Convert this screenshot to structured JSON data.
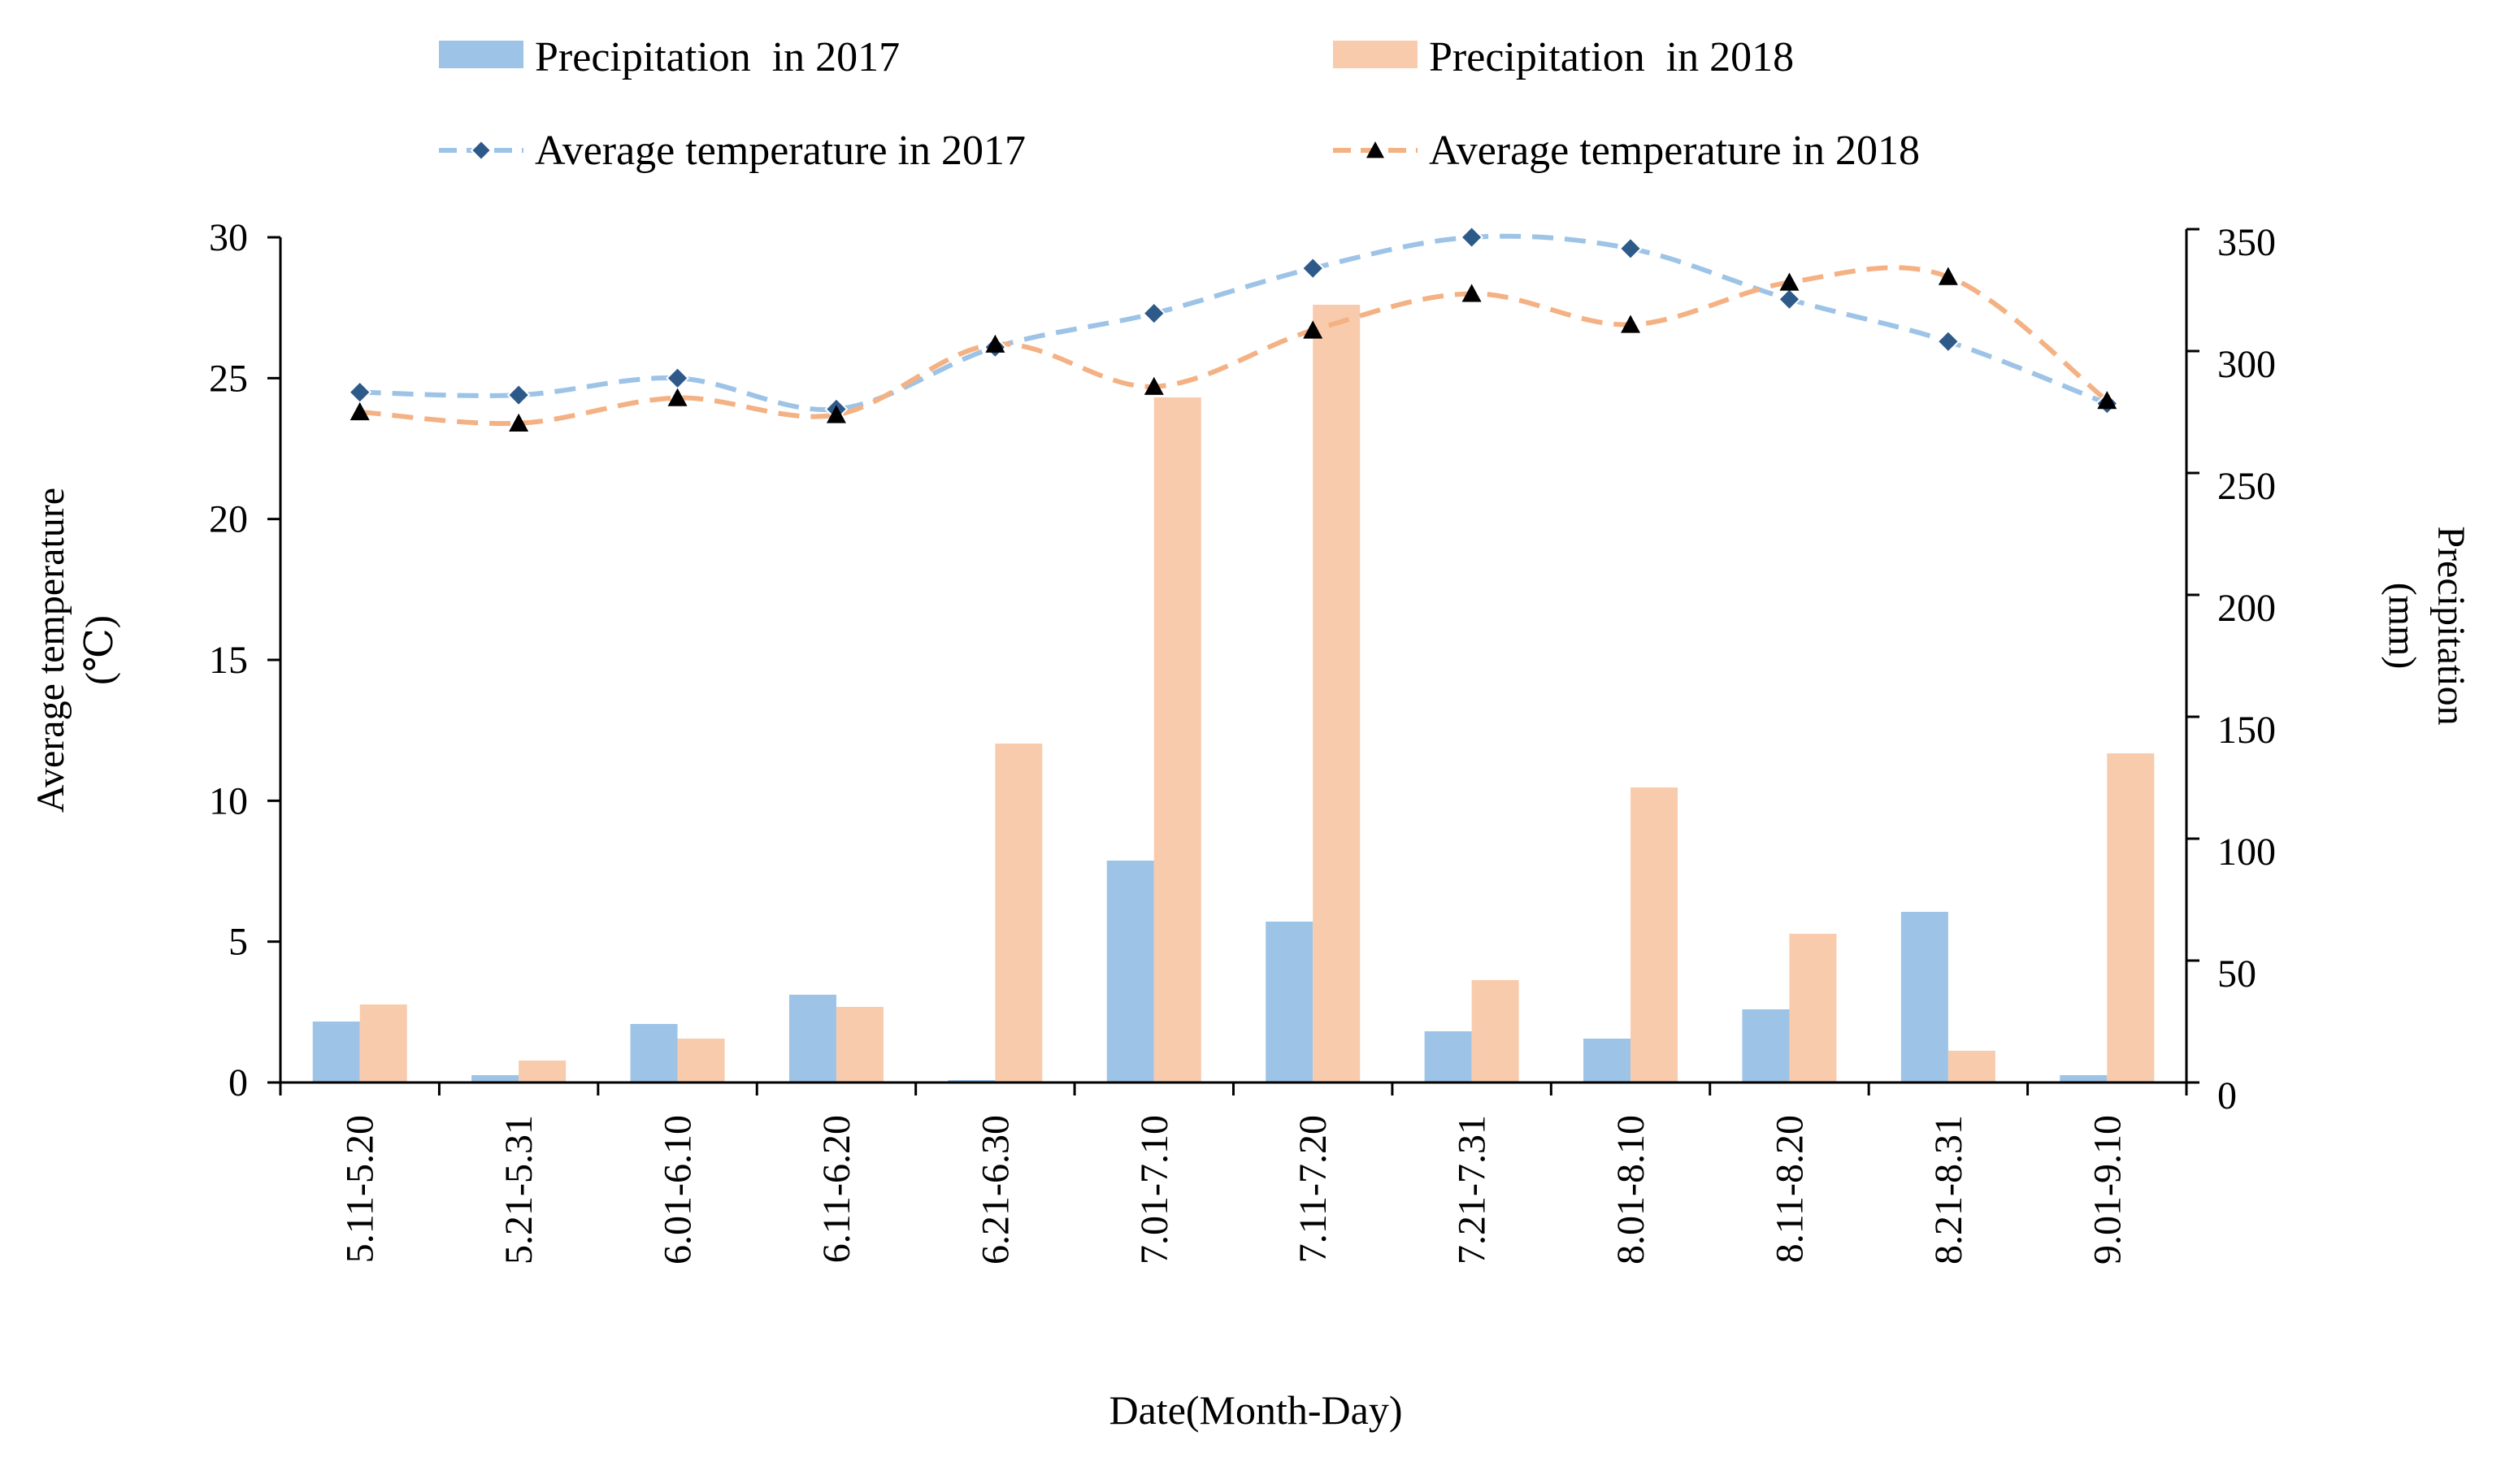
{
  "chart_data": {
    "type": "bar+line",
    "categories": [
      "5.11-5.20",
      "5.21-5.31",
      "6.01-6.10",
      "6.11-6.20",
      "6.21-6.30",
      "7.01-7.10",
      "7.11-7.20",
      "7.21-7.31",
      "8.01-8.10",
      "8.11-8.20",
      "8.21-8.31",
      "9.01-9.10"
    ],
    "bar_series": [
      {
        "name": "Precipitation  in 2017",
        "color": "#9dc3e6",
        "axis": "right",
        "values": [
          25,
          3,
          24,
          36,
          1,
          91,
          66,
          21,
          18,
          30,
          70,
          3
        ]
      },
      {
        "name": "Precipitation  in 2018",
        "color": "#f8cbad",
        "axis": "right",
        "values": [
          32,
          9,
          18,
          31,
          139,
          281,
          319,
          42,
          121,
          61,
          13,
          135
        ]
      }
    ],
    "line_series": [
      {
        "name": "Average temperature in 2017",
        "color": "#9dc3e6",
        "marker": "diamond",
        "marker_color": "#2e5a8a",
        "axis": "left",
        "values": [
          24.5,
          24.4,
          25.0,
          23.9,
          26.1,
          27.3,
          28.9,
          30.0,
          29.6,
          27.8,
          26.3,
          24.1
        ]
      },
      {
        "name": "Average temperature in 2018",
        "color": "#f4b183",
        "marker": "triangle",
        "marker_color": "#000000",
        "axis": "left",
        "values": [
          23.8,
          23.4,
          24.3,
          23.7,
          26.2,
          24.7,
          26.7,
          28.0,
          26.9,
          28.4,
          28.6,
          24.2
        ]
      }
    ],
    "left_axis": {
      "label_line1": "Average temperature",
      "label_line2": "(℃)",
      "min": 0,
      "max": 30,
      "step": 5,
      "tick_labels": [
        "0",
        "5",
        "10",
        "15",
        "20",
        "25",
        "30"
      ]
    },
    "right_axis": {
      "label_line1": "Precipitation",
      "label_line2": "(mm)",
      "min": 0,
      "max": 350,
      "step": 50,
      "tick_labels": [
        "0",
        "50",
        "100",
        "150",
        "200",
        "250",
        "300",
        "350"
      ]
    },
    "xlabel": "Date(Month-Day)",
    "legend": {
      "position": "top",
      "entries": [
        "Precipitation  in 2017",
        "Precipitation  in 2018",
        "Average temperature in 2017",
        "Average temperature in 2018"
      ]
    },
    "grid": false
  }
}
